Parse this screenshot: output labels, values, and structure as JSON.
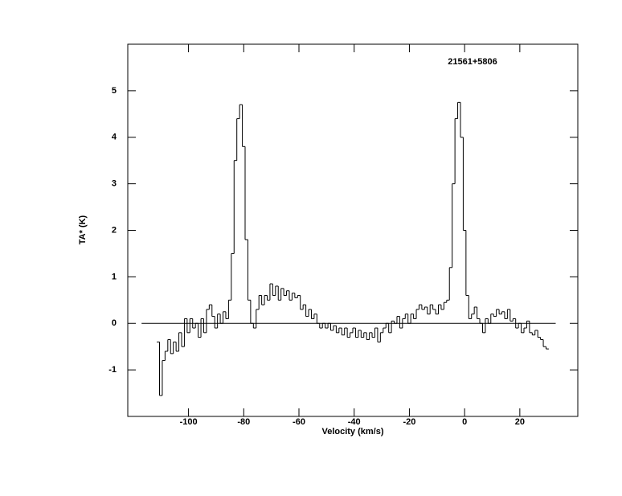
{
  "chart_data": {
    "type": "step",
    "title": "21561+5806",
    "xlabel": "Velocity (km/s)",
    "ylabel": "TA* (K)",
    "x": [
      -111,
      -110,
      -109,
      -108,
      -107,
      -106,
      -105,
      -104,
      -103,
      -102,
      -101,
      -100,
      -99,
      -98,
      -97,
      -96,
      -95,
      -94,
      -93,
      -92,
      -91,
      -90,
      -89,
      -88,
      -87,
      -86,
      -85,
      -84,
      -83,
      -82,
      -81,
      -80,
      -79,
      -78,
      -77,
      -76,
      -75,
      -74,
      -73,
      -72,
      -71,
      -70,
      -69,
      -68,
      -67,
      -66,
      -65,
      -64,
      -63,
      -62,
      -61,
      -60,
      -59,
      -58,
      -57,
      -56,
      -55,
      -54,
      -53,
      -52,
      -51,
      -50,
      -49,
      -48,
      -47,
      -46,
      -45,
      -44,
      -43,
      -42,
      -41,
      -40,
      -39,
      -38,
      -37,
      -36,
      -35,
      -34,
      -33,
      -32,
      -31,
      -30,
      -29,
      -28,
      -27,
      -26,
      -25,
      -24,
      -23,
      -22,
      -21,
      -20,
      -19,
      -18,
      -17,
      -16,
      -15,
      -14,
      -13,
      -12,
      -11,
      -10,
      -9,
      -8,
      -7,
      -6,
      -5,
      -4,
      -3,
      -2,
      -1,
      0,
      1,
      2,
      3,
      4,
      5,
      6,
      7,
      8,
      9,
      10,
      11,
      12,
      13,
      14,
      15,
      16,
      17,
      18,
      19,
      20,
      21,
      22,
      23,
      24,
      25,
      26,
      27,
      28,
      29,
      30
    ],
    "values": [
      -0.4,
      -1.55,
      -0.8,
      -0.6,
      -0.35,
      -0.65,
      -0.4,
      -0.6,
      -0.2,
      -0.5,
      0.1,
      -0.2,
      0.1,
      -0.1,
      0.0,
      -0.3,
      0.1,
      -0.2,
      0.3,
      0.4,
      0.15,
      -0.1,
      0.2,
      0.0,
      0.25,
      0.1,
      0.5,
      1.5,
      3.5,
      4.4,
      4.7,
      3.8,
      1.8,
      0.5,
      0.0,
      -0.1,
      0.3,
      0.6,
      0.4,
      0.6,
      0.5,
      0.85,
      0.6,
      0.8,
      0.5,
      0.75,
      0.6,
      0.7,
      0.5,
      0.65,
      0.55,
      0.6,
      0.3,
      0.4,
      0.15,
      0.3,
      0.1,
      0.2,
      0.0,
      -0.1,
      0.0,
      -0.1,
      0.0,
      -0.15,
      -0.05,
      -0.2,
      -0.1,
      -0.25,
      -0.1,
      -0.3,
      -0.2,
      -0.1,
      -0.3,
      -0.15,
      -0.3,
      -0.2,
      -0.35,
      -0.2,
      -0.3,
      -0.1,
      -0.4,
      -0.2,
      -0.1,
      0.0,
      -0.2,
      0.05,
      0.0,
      0.15,
      -0.1,
      0.1,
      0.2,
      0.0,
      0.2,
      0.1,
      0.3,
      0.4,
      0.3,
      0.35,
      0.2,
      0.4,
      0.3,
      0.2,
      0.4,
      0.3,
      0.45,
      0.5,
      1.2,
      3.0,
      4.4,
      4.75,
      4.0,
      2.0,
      0.6,
      0.1,
      0.2,
      0.35,
      0.1,
      0.0,
      -0.2,
      0.1,
      0.0,
      0.2,
      0.15,
      0.3,
      0.2,
      0.25,
      0.1,
      0.3,
      0.05,
      0.1,
      -0.1,
      0.0,
      -0.2,
      -0.1,
      0.05,
      -0.2,
      -0.25,
      -0.15,
      -0.3,
      -0.35,
      -0.5,
      -0.55
    ],
    "color": "#000000",
    "baseline": {
      "y": 0,
      "x": [
        -117,
        33
      ]
    },
    "xlim": [
      -122,
      41
    ],
    "ylim": [
      -2,
      6
    ],
    "xticks": [
      -100,
      -80,
      -60,
      -40,
      -20,
      0,
      20
    ],
    "yticks": [
      -1,
      0,
      1,
      2,
      3,
      4,
      5
    ]
  }
}
